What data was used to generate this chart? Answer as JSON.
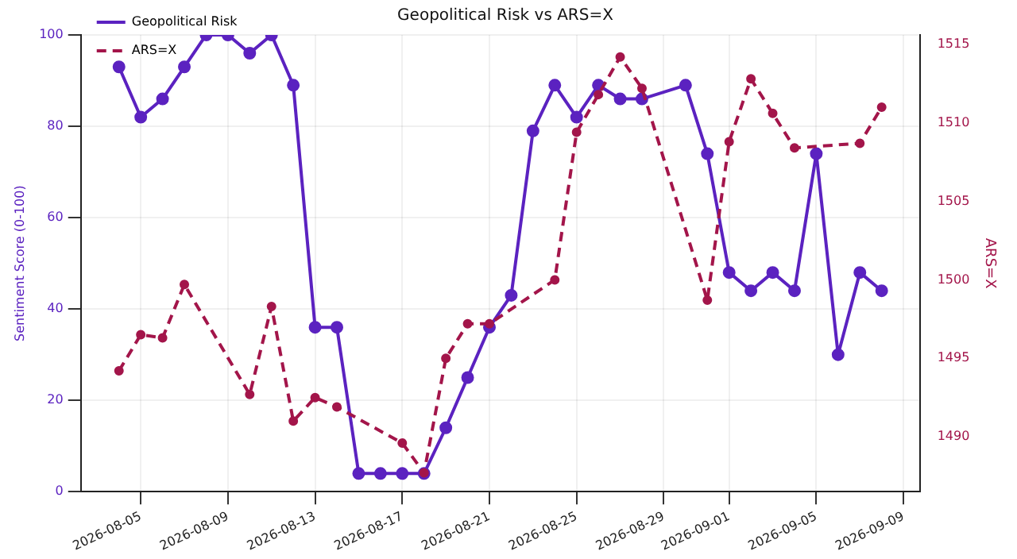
{
  "chart_data": {
    "type": "line",
    "title": "Geopolitical Risk vs ARS=X",
    "ylabel": "Sentiment Score (0-100)",
    "y2label": "ARS=X",
    "series": [
      {
        "name": "Geopolitical Risk",
        "color": "#5b22c0",
        "line_style": "solid",
        "x": [
          "2026-08-04",
          "2026-08-05",
          "2026-08-06",
          "2026-08-07",
          "2026-08-08",
          "2026-08-09",
          "2026-08-10",
          "2026-08-11",
          "2026-08-12",
          "2026-08-13",
          "2026-08-14",
          "2026-08-15",
          "2026-08-16",
          "2026-08-17",
          "2026-08-18",
          "2026-08-19",
          "2026-08-20",
          "2026-08-21",
          "2026-08-22",
          "2026-08-23",
          "2026-08-24",
          "2026-08-25",
          "2026-08-26",
          "2026-08-27",
          "2026-08-28",
          "2026-08-30",
          "2026-08-31",
          "2026-09-01",
          "2026-09-02",
          "2026-09-03",
          "2026-09-04",
          "2026-09-05",
          "2026-09-06",
          "2026-09-07",
          "2026-09-08"
        ],
        "values": [
          93,
          82,
          86,
          93,
          100,
          100,
          96,
          100,
          89,
          36,
          36,
          4,
          4,
          4,
          4,
          14,
          25,
          36,
          43,
          79,
          89,
          82,
          89,
          86,
          86,
          89,
          74,
          48,
          44,
          48,
          44,
          74,
          30,
          48,
          44
        ]
      },
      {
        "name": "ARS=X",
        "color": "#a3154a",
        "line_style": "dashed",
        "axis": "y2",
        "x": [
          "2026-08-04",
          "2026-08-05",
          "2026-08-06",
          "2026-08-07",
          "2026-08-10",
          "2026-08-11",
          "2026-08-12",
          "2026-08-13",
          "2026-08-14",
          "2026-08-17",
          "2026-08-18",
          "2026-08-19",
          "2026-08-20",
          "2026-08-21",
          "2026-08-24",
          "2026-08-25",
          "2026-08-26",
          "2026-08-27",
          "2026-08-28",
          "2026-08-31",
          "2026-09-01",
          "2026-09-02",
          "2026-09-03",
          "2026-09-04",
          "2026-09-07",
          "2026-09-08"
        ],
        "values": [
          1494.2,
          1496.5,
          1496.3,
          1499.7,
          1492.7,
          1498.3,
          1491.0,
          1492.5,
          1491.9,
          1489.6,
          1487.7,
          1495.0,
          1497.2,
          1497.2,
          1500.0,
          1509.4,
          1511.8,
          1514.2,
          1512.2,
          1498.7,
          1508.8,
          1512.8,
          1510.6,
          1508.4,
          1508.7,
          1511.0
        ]
      }
    ],
    "xlim": [
      "2026-08-02T06:00",
      "2026-09-09T18:00"
    ],
    "xticks": [
      "2026-08-05",
      "2026-08-09",
      "2026-08-13",
      "2026-08-17",
      "2026-08-21",
      "2026-08-25",
      "2026-08-29",
      "2026-09-01",
      "2026-09-05",
      "2026-09-09"
    ],
    "ylim": [
      0,
      100
    ],
    "yticks": [
      0,
      20,
      40,
      60,
      80,
      100
    ],
    "y2lim": [
      1486.5,
      1515.6
    ],
    "y2ticks": [
      1490,
      1495,
      1500,
      1505,
      1510,
      1515
    ],
    "grid": true,
    "legend": "top left",
    "marker": "circle"
  }
}
